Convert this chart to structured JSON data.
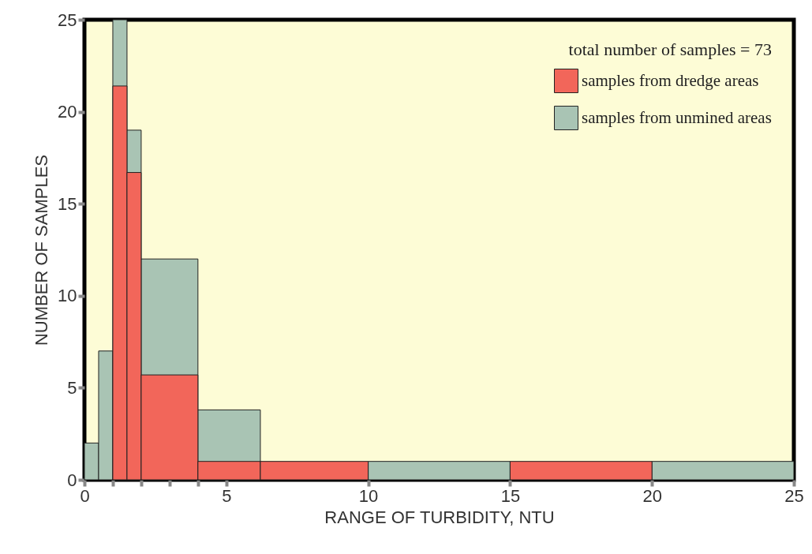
{
  "chart_data": {
    "type": "histogram",
    "xlabel": "RANGE OF TURBIDITY, NTU",
    "ylabel": "NUMBER OF SAMPLES",
    "annotations": [
      "total number of samples = 73"
    ],
    "bins": [
      0,
      0.5,
      1,
      1.5,
      2,
      4,
      6.2,
      10,
      15,
      20,
      25
    ],
    "series": [
      {
        "name": "samples from dredge areas",
        "color": "#f2665a",
        "values": [
          0,
          0,
          21.4,
          16.7,
          5.7,
          1,
          1,
          0,
          1,
          0
        ]
      },
      {
        "name": "samples from unmined areas",
        "color": "#a9c4b4",
        "values": [
          2,
          7,
          25,
          19,
          12,
          3.8,
          null,
          1,
          null,
          1
        ]
      }
    ],
    "xlim": [
      0,
      25
    ],
    "ylim": [
      0,
      25
    ],
    "xticks": [
      0,
      {
        "value": 1,
        "label": null
      },
      {
        "value": 2,
        "label": null
      },
      {
        "value": 3,
        "label": null
      },
      {
        "value": 4,
        "label": null
      },
      5,
      10,
      15,
      20,
      25
    ],
    "yticks": [
      0,
      5,
      10,
      15,
      20,
      25
    ],
    "grid": false,
    "legend": "top right"
  }
}
